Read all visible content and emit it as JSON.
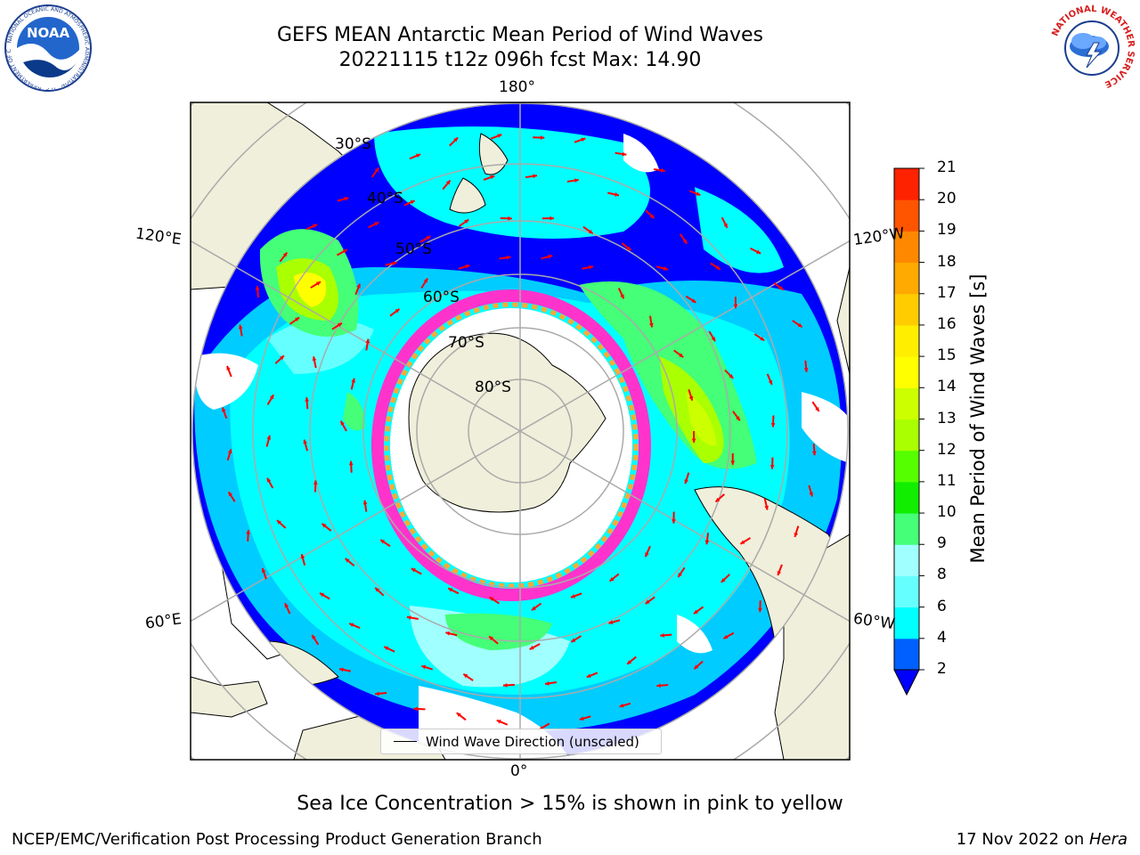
{
  "header": {
    "title_line1": "GEFS MEAN Antarctic Mean Period of Wind Waves",
    "title_line2": "20221115 t12z 096h fcst   Max: 14.90"
  },
  "logos": {
    "left": {
      "name": "NOAA",
      "text": "NOAA",
      "ring_text": "NATIONAL OCEANIC AND ATMOSPHERIC ADMINISTRATION · U.S. DEPARTMENT OF COMMERCE"
    },
    "right": {
      "name": "National Weather Service",
      "ring_text": "NATIONAL WEATHER SERVICE"
    }
  },
  "map": {
    "projection": "south-polar-stereographic",
    "latitude_labels": [
      "30°S",
      "40°S",
      "50°S",
      "60°S",
      "70°S",
      "80°S"
    ],
    "longitude_labels": {
      "top": "180°",
      "bottom": "0°",
      "upper_left": "120°E",
      "upper_right": "120°W",
      "lower_left": "60°E",
      "lower_right": "60°W"
    },
    "colors": {
      "land": "#efefdb",
      "open_ocean_deep": "#0000ff",
      "grid": "#aaaaaa",
      "arrow": "#ff0000",
      "ice_edge": "#ff33cc",
      "ice_edge_inner": "#ffaa33"
    }
  },
  "colorbar": {
    "title": "Mean Period of Wind Waves [s]",
    "tick_labels": [
      "2",
      "4",
      "6",
      "8",
      "9",
      "10",
      "11",
      "12",
      "13",
      "14",
      "15",
      "16",
      "17",
      "18",
      "19",
      "20",
      "21"
    ],
    "colors": [
      "#0060ff",
      "#00ccff",
      "#00ffff",
      "#66ffff",
      "#a0ffff",
      "#44ff77",
      "#11ee00",
      "#55ff00",
      "#aaff00",
      "#ccff00",
      "#ffff00",
      "#ffee00",
      "#ffcc00",
      "#ffaa00",
      "#ff8800",
      "#ff5500",
      "#ff2200",
      "#ff0000"
    ],
    "under_color": "#0000ff"
  },
  "legend": {
    "label": "Wind Wave Direction (unscaled)"
  },
  "notes": {
    "ice": "Sea Ice Concentration > 15% is shown in pink to yellow"
  },
  "footer": {
    "left": "NCEP/EMC/Verification Post Processing Product Generation Branch",
    "date": "17 Nov 2022 on ",
    "machine": "Hera"
  }
}
